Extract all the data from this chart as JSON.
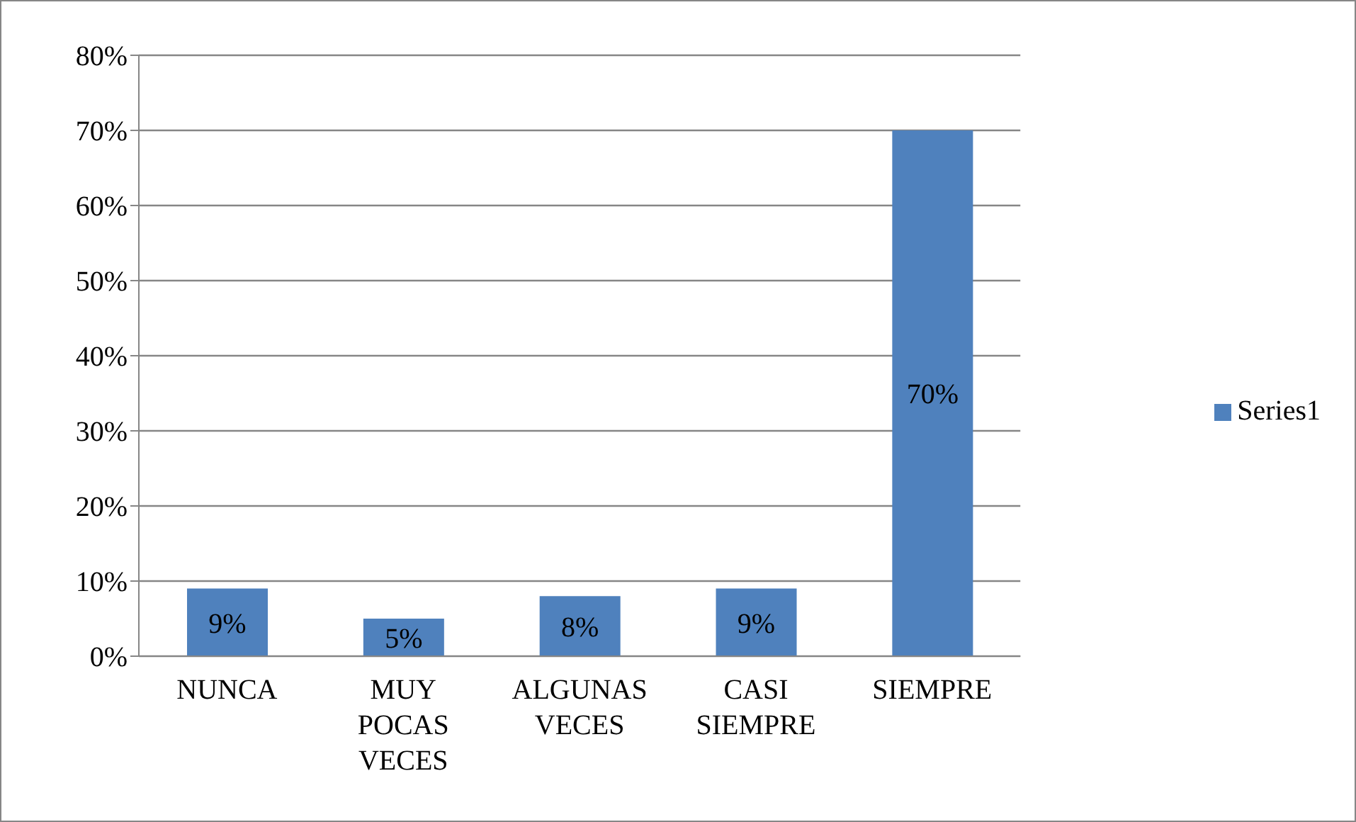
{
  "chart_data": {
    "type": "bar",
    "categories": [
      "NUNCA",
      "MUY POCAS VECES",
      "ALGUNAS VECES",
      "CASI SIEMPRE",
      "SIEMPRE"
    ],
    "series": [
      {
        "name": "Series1",
        "color": "#4f81bd",
        "values": [
          9,
          5,
          8,
          9,
          70
        ],
        "value_labels": [
          "9%",
          "5%",
          "8%",
          "9%",
          "70%"
        ]
      }
    ],
    "ylim": [
      0,
      80
    ],
    "yticks": [
      {
        "value": 0,
        "label": "0%"
      },
      {
        "value": 10,
        "label": "10%"
      },
      {
        "value": 20,
        "label": "20%"
      },
      {
        "value": 30,
        "label": "30%"
      },
      {
        "value": 40,
        "label": "40%"
      },
      {
        "value": 50,
        "label": "50%"
      },
      {
        "value": 60,
        "label": "60%"
      },
      {
        "value": 70,
        "label": "70%"
      },
      {
        "value": 80,
        "label": "80%"
      }
    ],
    "grid": "y",
    "legend": "right"
  }
}
